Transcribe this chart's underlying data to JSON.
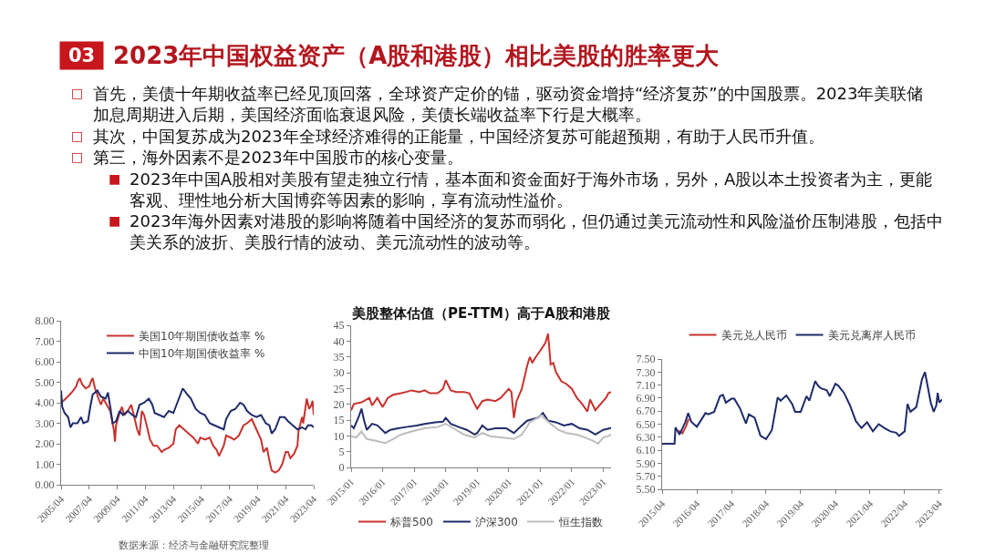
{
  "chart_data": [
    {
      "type": "other",
      "title": "2023年中国权益资产（A股和港股）相比美股的胜率更大",
      "annotations": [
        "03",
        "□ 首先，美债十年期收益率已经见顶回落，全球资产定价的锚，驱动资金增持“经济复苏”的中国股票。2023年美联储加息周期进入后期，美国经济面临衰退风险，美债长端收益率下行是大概率。",
        "□ 其次，中国复苏成为2023年全球经济难得的正能量，中国经济复苏可能超预期，有助于人民币升值。",
        "□ 第三，海外因素不是2023年中国股市的核心变量。",
        "■ 2023年中国A股相对美股有望走独立行情，基本面和资金面好于海外市场，另外，A股以本土投资者为主，更能客观、理性地分析大国博弈等因素的影响，享有流动性溢价。",
        "■ 2023年海外因素对港股的影响将随着中国经济的复苏而弱化，但仍通过美元流动性和风险溢价压制港股，包括中美关系的波折、美股行情的波动、美元流动性的波动等。",
        "数据来源：经济与金融研究院整理"
      ]
    },
    {
      "type": "line",
      "series": [
        {
          "name": "美国10年期国债收益率 %",
          "color": "#c8322e",
          "x": [
            "2005-04",
            "2005-08",
            "2006-01",
            "2006-05",
            "2006-06",
            "2006-08",
            "2006-10",
            "2007-01",
            "2007-04",
            "2007-06",
            "2007-07",
            "2007-09",
            "2007-12",
            "2008-02",
            "2008-04",
            "2008-07",
            "2008-10",
            "2009-01",
            "2009-02",
            "2009-03",
            "2009-06",
            "2009-08",
            "2009-10",
            "2010-01",
            "2010-04",
            "2010-07",
            "2010-09",
            "2010-11",
            "2011-01",
            "2011-03",
            "2011-06",
            "2011-08",
            "2011-11",
            "2012-02",
            "2012-06",
            "2012-08",
            "2012-12",
            "2013-04",
            "2013-06",
            "2013-09",
            "2014-01",
            "2014-05",
            "2014-09",
            "2015-01",
            "2015-03",
            "2015-07",
            "2015-11",
            "2016-02",
            "2016-05",
            "2016-07",
            "2016-11",
            "2017-01",
            "2017-05",
            "2017-08",
            "2017-12",
            "2018-04",
            "2018-07",
            "2018-11",
            "2019-03",
            "2019-07",
            "2019-09",
            "2019-12",
            "2020-02",
            "2020-04",
            "2020-07",
            "2020-10",
            "2021-01",
            "2021-04",
            "2021-06",
            "2021-08",
            "2021-11",
            "2022-02",
            "2022-03",
            "2022-06",
            "2022-07",
            "2022-10",
            "2022-12",
            "2023-02",
            "2023-03",
            "2023-04"
          ],
          "values": [
            4.0,
            4.2,
            4.5,
            4.8,
            5.0,
            5.2,
            4.9,
            4.7,
            4.8,
            5.1,
            5.2,
            4.7,
            4.2,
            3.9,
            4.2,
            3.9,
            3.6,
            2.7,
            2.1,
            2.9,
            3.5,
            3.8,
            3.4,
            3.6,
            3.9,
            3.2,
            2.7,
            2.4,
            3.6,
            3.4,
            2.7,
            2.2,
            1.9,
            1.9,
            1.6,
            1.7,
            1.8,
            2.0,
            2.7,
            2.9,
            2.7,
            2.5,
            2.3,
            2.0,
            2.3,
            2.2,
            2.3,
            1.9,
            1.7,
            1.4,
            1.9,
            2.4,
            2.3,
            2.2,
            2.4,
            2.9,
            3.0,
            3.2,
            2.7,
            2.2,
            1.6,
            1.8,
            1.2,
            0.7,
            0.6,
            0.7,
            1.0,
            1.6,
            1.6,
            1.3,
            1.5,
            1.9,
            2.6,
            3.3,
            3.0,
            4.2,
            3.7,
            3.9,
            4.1,
            3.4
          ]
        },
        {
          "name": "中国10年期国债收益率 %",
          "color": "#1f2b6b",
          "x": [
            "2005-04",
            "2005-05",
            "2005-07",
            "2005-10",
            "2005-12",
            "2006-02",
            "2006-06",
            "2006-09",
            "2006-11",
            "2007-03",
            "2007-05",
            "2007-07",
            "2007-11",
            "2008-02",
            "2008-06",
            "2008-08",
            "2008-10",
            "2008-12",
            "2009-03",
            "2009-06",
            "2009-09",
            "2010-01",
            "2010-05",
            "2010-08",
            "2010-11",
            "2011-03",
            "2011-07",
            "2011-10",
            "2011-12",
            "2012-04",
            "2012-08",
            "2012-12",
            "2013-04",
            "2013-06",
            "2013-10",
            "2013-12",
            "2014-04",
            "2014-07",
            "2014-11",
            "2015-03",
            "2015-07",
            "2015-11",
            "2016-03",
            "2016-07",
            "2016-11",
            "2017-01",
            "2017-05",
            "2017-09",
            "2018-01",
            "2018-04",
            "2018-07",
            "2018-11",
            "2019-03",
            "2019-07",
            "2019-11",
            "2020-02",
            "2020-04",
            "2020-07",
            "2020-11",
            "2021-03",
            "2021-06",
            "2021-10",
            "2022-02",
            "2022-06",
            "2022-09",
            "2022-11",
            "2023-02",
            "2023-04"
          ],
          "values": [
            4.6,
            3.8,
            3.5,
            3.3,
            2.8,
            3.0,
            3.0,
            3.3,
            3.0,
            3.1,
            3.8,
            4.4,
            4.6,
            4.3,
            4.2,
            4.5,
            3.8,
            3.0,
            3.1,
            3.6,
            3.4,
            3.6,
            3.4,
            3.3,
            3.9,
            4.0,
            4.2,
            3.9,
            3.5,
            3.4,
            3.3,
            3.6,
            3.5,
            3.8,
            4.4,
            4.7,
            4.4,
            4.2,
            3.7,
            3.5,
            3.4,
            3.0,
            2.9,
            2.8,
            2.7,
            3.2,
            3.6,
            3.7,
            4.0,
            3.9,
            3.6,
            3.4,
            3.3,
            3.4,
            3.0,
            2.9,
            2.5,
            2.7,
            3.3,
            3.3,
            3.1,
            2.9,
            2.7,
            2.8,
            2.7,
            2.9,
            2.9,
            2.8
          ]
        }
      ],
      "xlim": [
        "2005-04",
        "2023-04"
      ],
      "xticks": [
        {
          "value": "2005-04",
          "label": "2005/04"
        },
        {
          "value": "2007-04",
          "label": "2007/04"
        },
        {
          "value": "2009-04",
          "label": "2009/04"
        },
        {
          "value": "2011-04",
          "label": "2011/04"
        },
        {
          "value": "2013-04",
          "label": "2013/04"
        },
        {
          "value": "2015-04",
          "label": "2015/04"
        },
        {
          "value": "2017-04",
          "label": "2017/04"
        },
        {
          "value": "2019-04",
          "label": "2019/04"
        },
        {
          "value": "2021-04",
          "label": "2021/04"
        },
        {
          "value": "2023-04",
          "label": "2023/04"
        }
      ],
      "ylim": [
        0,
        8
      ],
      "yticks": [
        {
          "value": 0,
          "label": "0.00"
        },
        {
          "value": 1,
          "label": "1.00"
        },
        {
          "value": 2,
          "label": "2.00"
        },
        {
          "value": 3,
          "label": "3.00"
        },
        {
          "value": 4,
          "label": "4.00"
        },
        {
          "value": 5,
          "label": "5.00"
        },
        {
          "value": 6,
          "label": "6.00"
        },
        {
          "value": 7,
          "label": "7.00"
        },
        {
          "value": 8,
          "label": "8.00"
        }
      ],
      "legend": "top left"
    },
    {
      "type": "line",
      "title": "美股整体估值（PE-TTM）高于A股和港股",
      "series": [
        {
          "name": "标普500",
          "color": "#c8322e",
          "x": [
            "2015-01",
            "2015-02",
            "2015-05",
            "2015-08",
            "2015-09",
            "2015-11",
            "2016-01",
            "2016-03",
            "2016-05",
            "2016-08",
            "2016-10",
            "2016-12",
            "2017-03",
            "2017-05",
            "2017-07",
            "2017-10",
            "2017-12",
            "2018-01",
            "2018-03",
            "2018-05",
            "2018-08",
            "2018-10",
            "2018-12",
            "2019-01",
            "2019-03",
            "2019-05",
            "2019-08",
            "2019-10",
            "2019-12",
            "2020-01",
            "2020-02",
            "2020-03",
            "2020-04",
            "2020-06",
            "2020-08",
            "2020-09",
            "2020-10",
            "2020-11",
            "2021-01",
            "2021-03",
            "2021-04",
            "2021-05",
            "2021-06",
            "2021-07",
            "2021-09",
            "2021-11",
            "2022-01",
            "2022-03",
            "2022-05",
            "2022-07",
            "2022-08",
            "2022-10",
            "2022-12",
            "2023-02",
            "2023-03",
            "2023-04"
          ],
          "values": [
            18.1,
            20.1,
            20.6,
            22.0,
            19.6,
            22.0,
            19.1,
            22.0,
            23.0,
            23.5,
            23.9,
            24.4,
            23.9,
            24.4,
            23.5,
            23.5,
            24.9,
            27.6,
            24.4,
            23.9,
            23.9,
            23.5,
            20.1,
            18.6,
            21.0,
            21.5,
            21.0,
            22.0,
            23.9,
            24.9,
            23.9,
            15.7,
            21.0,
            24.9,
            32.1,
            35.0,
            33.1,
            34.6,
            37.0,
            39.4,
            42.3,
            32.6,
            33.1,
            30.2,
            27.3,
            26.4,
            24.9,
            22.0,
            20.1,
            17.7,
            21.5,
            18.1,
            20.1,
            22.0,
            23.5,
            23.9
          ]
        },
        {
          "name": "沪深300",
          "color": "#1f2b6b",
          "x": [
            "2015-01",
            "2015-02",
            "2015-04",
            "2015-05",
            "2015-06",
            "2015-07",
            "2015-09",
            "2015-11",
            "2016-02",
            "2016-04",
            "2016-07",
            "2016-10",
            "2017-02",
            "2017-05",
            "2017-09",
            "2017-12",
            "2018-01",
            "2018-03",
            "2018-06",
            "2018-09",
            "2018-12",
            "2019-01",
            "2019-03",
            "2019-05",
            "2019-08",
            "2019-12",
            "2020-03",
            "2020-06",
            "2020-08",
            "2020-12",
            "2021-02",
            "2021-04",
            "2021-07",
            "2021-10",
            "2022-01",
            "2022-04",
            "2022-07",
            "2022-10",
            "2023-01",
            "2023-04"
          ],
          "values": [
            13.3,
            12.4,
            16.2,
            18.6,
            14.8,
            11.9,
            13.8,
            13.3,
            10.9,
            11.9,
            12.4,
            12.8,
            13.3,
            13.8,
            14.3,
            14.5,
            15.7,
            13.8,
            12.8,
            11.9,
            10.4,
            10.9,
            13.3,
            11.9,
            12.4,
            12.4,
            10.9,
            13.3,
            14.8,
            15.7,
            17.2,
            14.8,
            14.3,
            13.3,
            13.8,
            12.4,
            11.9,
            10.4,
            11.9,
            12.5
          ]
        },
        {
          "name": "恒生指数",
          "color": "#bdbdbd",
          "x": [
            "2015-01",
            "2015-03",
            "2015-05",
            "2015-07",
            "2015-10",
            "2016-02",
            "2016-05",
            "2016-08",
            "2016-12",
            "2017-05",
            "2017-10",
            "2018-01",
            "2018-05",
            "2018-08",
            "2018-12",
            "2019-03",
            "2019-06",
            "2019-10",
            "2020-03",
            "2020-06",
            "2020-09",
            "2020-12",
            "2021-01",
            "2021-05",
            "2021-08",
            "2021-11",
            "2022-03",
            "2022-06",
            "2022-09",
            "2022-11",
            "2023-01",
            "2023-03",
            "2023-04"
          ],
          "values": [
            9.9,
            9.5,
            11.4,
            9.0,
            8.5,
            7.7,
            9.0,
            10.4,
            11.4,
            12.4,
            12.8,
            13.8,
            11.9,
            10.4,
            9.5,
            10.9,
            9.9,
            9.5,
            9.0,
            10.4,
            14.3,
            15.7,
            16.7,
            13.8,
            11.9,
            10.9,
            10.4,
            9.5,
            8.5,
            7.5,
            9.5,
            9.9,
            10.4
          ]
        }
      ],
      "xlim": [
        "2015-01",
        "2023-04"
      ],
      "xticks": [
        {
          "value": "2015-01",
          "label": "2015/01"
        },
        {
          "value": "2016-01",
          "label": "2016/01"
        },
        {
          "value": "2017-01",
          "label": "2017/01"
        },
        {
          "value": "2018-01",
          "label": "2018/01"
        },
        {
          "value": "2019-01",
          "label": "2019/01"
        },
        {
          "value": "2020-01",
          "label": "2020/01"
        },
        {
          "value": "2021-01",
          "label": "2021/01"
        },
        {
          "value": "2022-01",
          "label": "2022/01"
        },
        {
          "value": "2023-01",
          "label": "2023/01"
        }
      ],
      "ylim": [
        0,
        45
      ],
      "yticks": [
        0,
        5,
        10,
        15,
        20,
        25,
        30,
        35,
        40,
        45
      ],
      "legend": "bottom"
    },
    {
      "type": "line",
      "series": [
        {
          "name": "美元兑人民币",
          "color": "#c8322e",
          "x": [
            "2015-09-20",
            "2015-11",
            "2015-12-10",
            "2016-01-05"
          ],
          "values": [
            6.4,
            6.36,
            6.47,
            6.58
          ]
        },
        {
          "name": "美元兑离岸人民币",
          "color": "#1f2b6b",
          "x": [
            "2015-04",
            "2015-08-10",
            "2015-08-20",
            "2015-10",
            "2015-12",
            "2016-01",
            "2016-02",
            "2016-04",
            "2016-07",
            "2016-08",
            "2016-10",
            "2016-12",
            "2017-01",
            "2017-02",
            "2017-04",
            "2017-05",
            "2017-07",
            "2017-09",
            "2017-10",
            "2017-12",
            "2018-02",
            "2018-04",
            "2018-06",
            "2018-08",
            "2018-09",
            "2018-11",
            "2019-01",
            "2019-02",
            "2019-04",
            "2019-06",
            "2019-07",
            "2019-09",
            "2019-10",
            "2019-11",
            "2020-01",
            "2020-02",
            "2020-04",
            "2020-05",
            "2020-07",
            "2020-09",
            "2020-11",
            "2021-01",
            "2021-03",
            "2021-05",
            "2021-07",
            "2021-09",
            "2021-11",
            "2022-01",
            "2022-02",
            "2022-04",
            "2022-05",
            "2022-06",
            "2022-08",
            "2022-09",
            "2022-10",
            "2022-11",
            "2022-12",
            "2023-01",
            "2023-02",
            "2023-03",
            "2023-03-15",
            "2023-04",
            "2023-05"
          ],
          "values": [
            6.2,
            6.2,
            6.45,
            6.34,
            6.53,
            6.67,
            6.54,
            6.46,
            6.67,
            6.65,
            6.69,
            6.93,
            6.95,
            6.83,
            6.89,
            6.89,
            6.74,
            6.51,
            6.65,
            6.6,
            6.32,
            6.27,
            6.41,
            6.91,
            6.86,
            6.94,
            6.81,
            6.69,
            6.69,
            6.93,
            6.86,
            7.16,
            7.09,
            7.05,
            7.02,
            6.93,
            7.12,
            7.09,
            6.98,
            6.79,
            6.55,
            6.44,
            6.53,
            6.39,
            6.5,
            6.44,
            6.39,
            6.37,
            6.32,
            6.39,
            6.81,
            6.69,
            6.76,
            6.98,
            7.19,
            7.3,
            7.07,
            6.83,
            6.69,
            6.79,
            6.98,
            6.83,
            6.88
          ]
        }
      ],
      "xlim": [
        "2015-04",
        "2023-05"
      ],
      "xticks": [
        {
          "value": "2015-04",
          "label": "2015/04"
        },
        {
          "value": "2016-04",
          "label": "2016/04"
        },
        {
          "value": "2017-04",
          "label": "2017/04"
        },
        {
          "value": "2018-04",
          "label": "2018/04"
        },
        {
          "value": "2019-04",
          "label": "2019/04"
        },
        {
          "value": "2020-04",
          "label": "2020/04"
        },
        {
          "value": "2021-04",
          "label": "2021/04"
        },
        {
          "value": "2022-04",
          "label": "2022/04"
        },
        {
          "value": "2023-04",
          "label": "2023/04"
        }
      ],
      "ylim": [
        5.5,
        7.5
      ],
      "yticks": [
        {
          "value": 5.5,
          "label": "5.50"
        },
        {
          "value": 5.7,
          "label": "5.70"
        },
        {
          "value": 5.9,
          "label": "5.90"
        },
        {
          "value": 6.1,
          "label": "6.10"
        },
        {
          "value": 6.3,
          "label": "6.30"
        },
        {
          "value": 6.5,
          "label": "6.50"
        },
        {
          "value": 6.7,
          "label": "6.70"
        },
        {
          "value": 6.9,
          "label": "6.90"
        },
        {
          "value": 7.1,
          "label": "7.10"
        },
        {
          "value": 7.3,
          "label": "7.30"
        },
        {
          "value": 7.5,
          "label": "7.50"
        }
      ],
      "legend": "top"
    }
  ]
}
